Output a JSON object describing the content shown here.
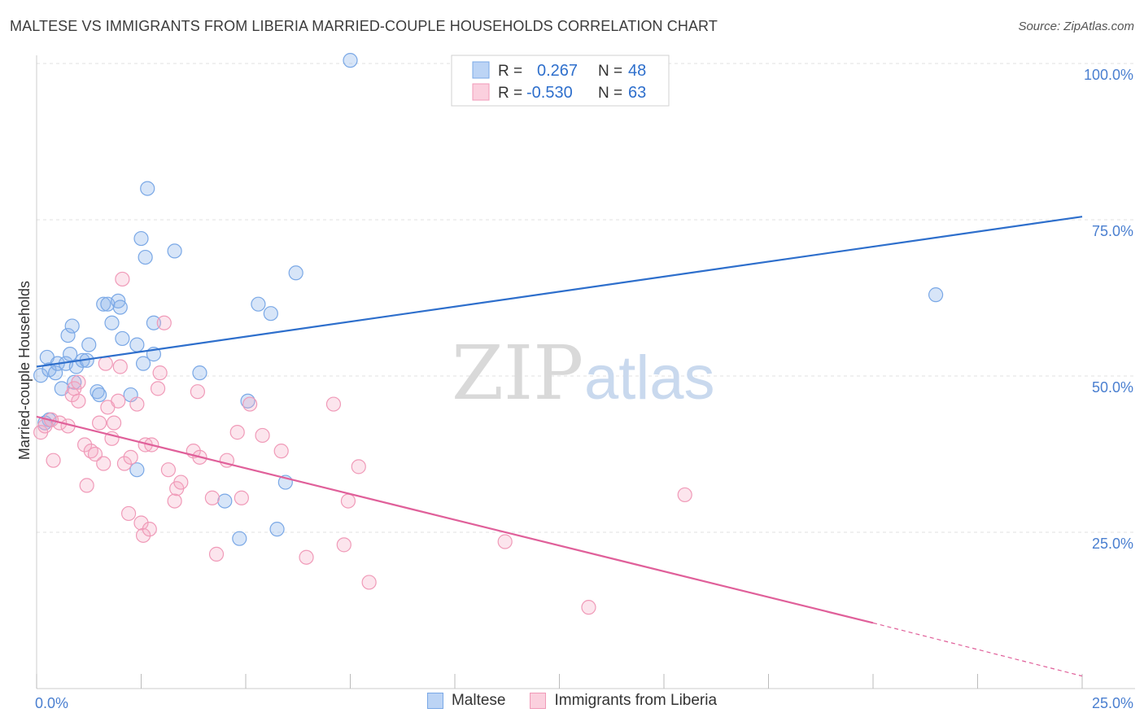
{
  "header": {
    "title": "MALTESE VS IMMIGRANTS FROM LIBERIA MARRIED-COUPLE HOUSEHOLDS CORRELATION CHART",
    "source": "Source: ZipAtlas.com"
  },
  "watermark": {
    "zip": "ZIP",
    "atlas": "atlas"
  },
  "chart_data": {
    "type": "scatter",
    "ylabel": "Married-couple Households",
    "xlim": [
      0,
      25
    ],
    "ylim": [
      0,
      105
    ],
    "x_tick_labels": [
      {
        "x": 0,
        "label": "0.0%"
      },
      {
        "x": 25,
        "label": "25.0%"
      }
    ],
    "y_tick_labels": [
      {
        "y": 100,
        "label": "100.0%"
      },
      {
        "y": 75,
        "label": "75.0%"
      },
      {
        "y": 50,
        "label": "50.0%"
      },
      {
        "y": 25,
        "label": "25.0%"
      }
    ],
    "grid": true,
    "legend_position": "top-center",
    "stats": [
      {
        "series": "Maltese",
        "r_label": "R =",
        "r_value": "0.267",
        "n_label": "N =",
        "n_value": "48"
      },
      {
        "series": "Immigrants from Liberia",
        "r_label": "R =",
        "r_value": "-0.530",
        "n_label": "N =",
        "n_value": "63"
      }
    ],
    "series": [
      {
        "name": "Maltese",
        "color": "#7aa8e6",
        "fill": "rgba(140,180,235,0.35)",
        "line_color": "#2e6fcc",
        "trend": {
          "x0": 0,
          "y0": 51.5,
          "x1": 25,
          "y1": 75.5
        },
        "points": [
          [
            0.1,
            50.1
          ],
          [
            0.25,
            53
          ],
          [
            0.3,
            51
          ],
          [
            0.45,
            50.5
          ],
          [
            0.5,
            52
          ],
          [
            0.6,
            48
          ],
          [
            0.7,
            52
          ],
          [
            0.75,
            56.5
          ],
          [
            0.8,
            53.5
          ],
          [
            0.85,
            58
          ],
          [
            0.9,
            49
          ],
          [
            0.95,
            51.5
          ],
          [
            1.1,
            52.5
          ],
          [
            1.25,
            55
          ],
          [
            1.2,
            52.5
          ],
          [
            1.45,
            47.5
          ],
          [
            1.5,
            47
          ],
          [
            1.6,
            61.5
          ],
          [
            1.7,
            61.5
          ],
          [
            1.8,
            58.5
          ],
          [
            1.95,
            62
          ],
          [
            2.0,
            61
          ],
          [
            2.05,
            56
          ],
          [
            2.4,
            55
          ],
          [
            2.55,
            52
          ],
          [
            2.5,
            72
          ],
          [
            2.6,
            69
          ],
          [
            2.65,
            80
          ],
          [
            2.8,
            53.5
          ],
          [
            2.8,
            58.5
          ],
          [
            2.25,
            47
          ],
          [
            2.4,
            35
          ],
          [
            3.3,
            70
          ],
          [
            3.9,
            50.5
          ],
          [
            4.5,
            30
          ],
          [
            4.85,
            24
          ],
          [
            5.05,
            46
          ],
          [
            5.3,
            61.5
          ],
          [
            5.6,
            60
          ],
          [
            5.75,
            25.5
          ],
          [
            5.95,
            33
          ],
          [
            6.2,
            66.5
          ],
          [
            7.5,
            100.5
          ],
          [
            21.5,
            63
          ],
          [
            0.3,
            43
          ],
          [
            0.2,
            42.5
          ]
        ]
      },
      {
        "name": "Immigrants from Liberia",
        "color": "#f09ab8",
        "fill": "rgba(245,170,195,0.3)",
        "line_color": "#e0609a",
        "trend": {
          "x0": 0,
          "y0": 43.5,
          "x1": 20,
          "y1": 10.5
        },
        "trend_dash": {
          "x0": 20,
          "y0": 10.5,
          "x1": 25,
          "y1": 2
        },
        "points": [
          [
            0.1,
            41
          ],
          [
            0.2,
            42
          ],
          [
            0.35,
            43
          ],
          [
            0.4,
            36.5
          ],
          [
            0.55,
            42.5
          ],
          [
            0.75,
            42
          ],
          [
            0.85,
            47
          ],
          [
            0.9,
            48
          ],
          [
            1.0,
            49
          ],
          [
            1.0,
            46
          ],
          [
            1.15,
            39
          ],
          [
            1.2,
            32.5
          ],
          [
            1.3,
            38
          ],
          [
            1.4,
            37.5
          ],
          [
            1.5,
            42.5
          ],
          [
            1.6,
            36
          ],
          [
            1.65,
            52
          ],
          [
            1.7,
            45
          ],
          [
            1.8,
            40
          ],
          [
            1.85,
            42.5
          ],
          [
            1.95,
            46
          ],
          [
            2.0,
            51.5
          ],
          [
            2.05,
            65.5
          ],
          [
            2.1,
            36
          ],
          [
            2.2,
            28
          ],
          [
            2.25,
            37
          ],
          [
            2.4,
            45.5
          ],
          [
            2.5,
            26.5
          ],
          [
            2.55,
            24.5
          ],
          [
            2.6,
            39
          ],
          [
            2.7,
            25.5
          ],
          [
            2.75,
            39
          ],
          [
            2.9,
            48
          ],
          [
            2.95,
            50.5
          ],
          [
            3.05,
            58.5
          ],
          [
            3.15,
            35
          ],
          [
            3.3,
            30
          ],
          [
            3.35,
            32
          ],
          [
            3.45,
            33
          ],
          [
            3.75,
            38
          ],
          [
            3.85,
            47.5
          ],
          [
            3.9,
            37
          ],
          [
            4.2,
            30.5
          ],
          [
            4.3,
            21.5
          ],
          [
            4.55,
            36.5
          ],
          [
            4.8,
            41
          ],
          [
            4.9,
            30.5
          ],
          [
            5.1,
            45.5
          ],
          [
            5.4,
            40.5
          ],
          [
            5.85,
            38
          ],
          [
            6.45,
            21
          ],
          [
            7.1,
            45.5
          ],
          [
            7.35,
            23
          ],
          [
            7.45,
            30
          ],
          [
            7.7,
            35.5
          ],
          [
            7.95,
            17
          ],
          [
            11.2,
            23.5
          ],
          [
            13.2,
            13
          ],
          [
            15.5,
            31
          ]
        ]
      }
    ]
  }
}
